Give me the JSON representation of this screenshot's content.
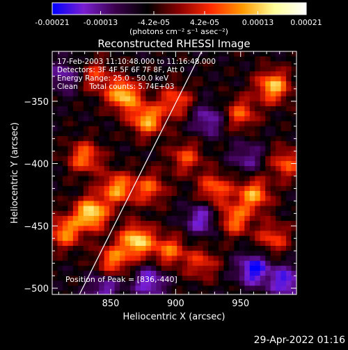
{
  "colorbar": {
    "tick_labels": [
      "-0.00021",
      "-0.00013",
      "-4.2e-05",
      "4.2e-05",
      "0.00013",
      "0.00021"
    ],
    "tick_values": [
      -0.00021,
      -0.00013,
      -4.2e-05,
      4.2e-05,
      0.00013,
      0.00021
    ],
    "range": [
      -0.00021,
      0.00021
    ],
    "unit_label": "(photons cm⁻² s⁻¹ asec⁻²)",
    "colors": [
      "#0000ff",
      "#7a1fd0",
      "#3a004a",
      "#000000",
      "#8a0000",
      "#ff2a00",
      "#ff9a00",
      "#ffff9a",
      "#ffffff"
    ]
  },
  "chart_data": {
    "type": "heatmap",
    "title": "Reconstructed RHESSI Image",
    "xlabel": "Heliocentric X (arcsec)",
    "ylabel": "Heliocentric Y (arcsec)",
    "xlim": [
      805,
      993
    ],
    "ylim": [
      -505,
      -310
    ],
    "x_ticks": [
      850,
      900,
      950
    ],
    "x_tick_labels": [
      "850",
      "900",
      "950"
    ],
    "y_ticks": [
      -350,
      -400,
      -450,
      -500
    ],
    "y_tick_labels": [
      "−350",
      "−400",
      "−450",
      "−500"
    ],
    "limb_line": [
      [
        826,
        -505
      ],
      [
        920,
        -310
      ]
    ],
    "annotations": [
      "17-Feb-2003 11:10:48.000 to 11:16:48.000",
      "Detectors: 3F 4F 5F 6F 7F 8F, Att 0",
      "Energy Range: 25.0 - 50.0 keV",
      "Clean     Total counts: 5.74E+03"
    ],
    "peak_label": "Position of Peak = [836,-440]",
    "peak": [
      836,
      -440
    ],
    "blobs": [
      {
        "x": 860,
        "y": -345,
        "value": 0.00019
      },
      {
        "x": 878,
        "y": -365,
        "value": 0.00017
      },
      {
        "x": 900,
        "y": -350,
        "value": 0.00012
      },
      {
        "x": 838,
        "y": -330,
        "value": 0.0001
      },
      {
        "x": 830,
        "y": -395,
        "value": 0.00014
      },
      {
        "x": 855,
        "y": -420,
        "value": 0.00016
      },
      {
        "x": 880,
        "y": -420,
        "value": 0.00012
      },
      {
        "x": 835,
        "y": -440,
        "value": 0.00021
      },
      {
        "x": 815,
        "y": -455,
        "value": 0.00015
      },
      {
        "x": 870,
        "y": -462,
        "value": 0.0002
      },
      {
        "x": 895,
        "y": -470,
        "value": 0.00013
      },
      {
        "x": 852,
        "y": -478,
        "value": 0.00014
      },
      {
        "x": 908,
        "y": -395,
        "value": 0.00011
      },
      {
        "x": 930,
        "y": -420,
        "value": 0.00013
      },
      {
        "x": 960,
        "y": -425,
        "value": 0.00016
      },
      {
        "x": 975,
        "y": -338,
        "value": 0.00018
      },
      {
        "x": 950,
        "y": -360,
        "value": 0.00012
      },
      {
        "x": 945,
        "y": -445,
        "value": 0.00014
      },
      {
        "x": 985,
        "y": -400,
        "value": 0.00012
      },
      {
        "x": 975,
        "y": -460,
        "value": 0.00011
      },
      {
        "x": 920,
        "y": -480,
        "value": 0.0001
      },
      {
        "x": 880,
        "y": -495,
        "value": -0.00012
      },
      {
        "x": 925,
        "y": -365,
        "value": -0.0001
      },
      {
        "x": 960,
        "y": -485,
        "value": -0.00015
      },
      {
        "x": 985,
        "y": -495,
        "value": -0.00013
      },
      {
        "x": 920,
        "y": -445,
        "value": -0.00011
      },
      {
        "x": 815,
        "y": -330,
        "value": -9e-05
      },
      {
        "x": 955,
        "y": -395,
        "value": -8e-05
      },
      {
        "x": 845,
        "y": -500,
        "value": -0.0001
      }
    ]
  },
  "footer": {
    "timestamp": "29-Apr-2022 01:16"
  }
}
